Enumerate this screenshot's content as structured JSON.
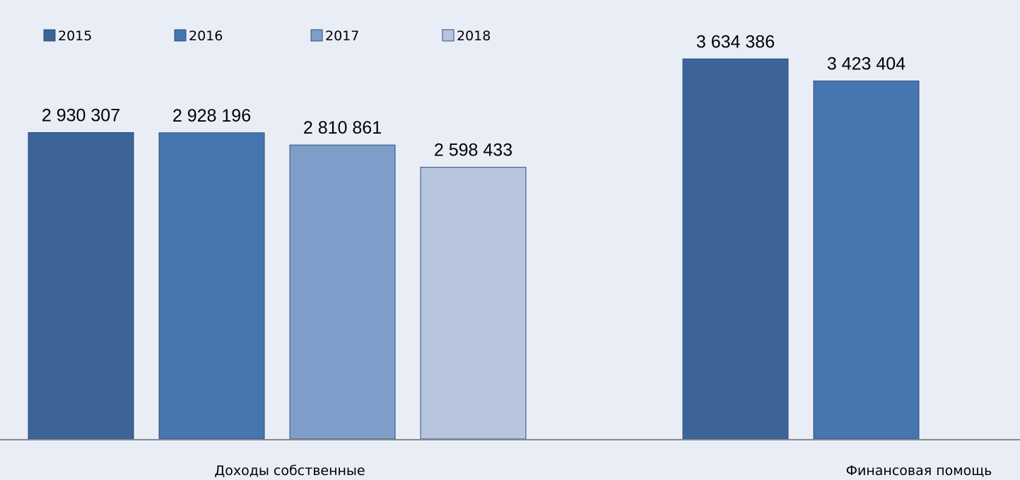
{
  "chart_data": {
    "type": "bar",
    "categories": [
      "Доходы собственные",
      "Финансовая помощь"
    ],
    "series": [
      {
        "name": "2015",
        "color": "#3c6497",
        "values": [
          2930307,
          3634386
        ]
      },
      {
        "name": "2016",
        "color": "#4675af",
        "values": [
          2928196,
          3423404
        ]
      },
      {
        "name": "2017",
        "color": "#7f9dc9",
        "values": [
          2810861,
          null
        ]
      },
      {
        "name": "2018",
        "color": "#b7c5de",
        "values": [
          2598433,
          null
        ]
      }
    ],
    "value_labels": [
      [
        "2 930 307",
        "3 634 386"
      ],
      [
        "2 928 196",
        "3 423 404"
      ],
      [
        "2 810 861",
        ""
      ],
      [
        "2 598 433",
        ""
      ]
    ],
    "ylim": [
      0,
      3900000
    ],
    "legend_position": "top-left",
    "grid": false,
    "title": "",
    "xlabel": "",
    "ylabel": ""
  }
}
